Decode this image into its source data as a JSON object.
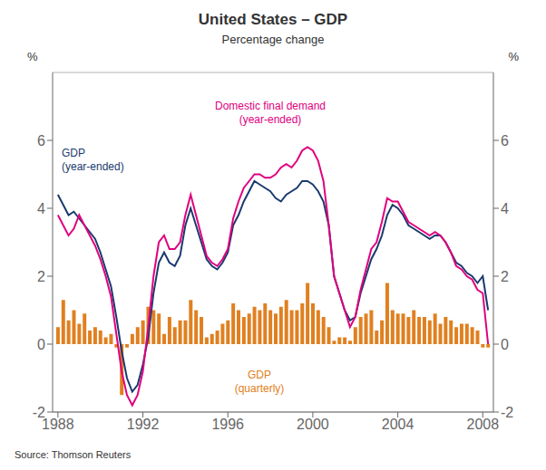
{
  "chart_data": {
    "type": "bar",
    "title": "United States – GDP",
    "subtitle": "Percentage change",
    "ylabel": "%",
    "y2label": "%",
    "source": "Source: Thomson Reuters",
    "xlim": [
      1987.75,
      2008.5
    ],
    "xticks": [
      1988,
      1992,
      1996,
      2000,
      2004,
      2008
    ],
    "ylim": [
      -2,
      8
    ],
    "yticks": [
      -2,
      0,
      2,
      4,
      6
    ],
    "y2lim": [
      -2,
      8
    ],
    "y2ticks": [
      -2,
      0,
      2,
      4,
      6
    ],
    "grid": true,
    "x": [
      1988.0,
      1988.25,
      1988.5,
      1988.75,
      1989.0,
      1989.25,
      1989.5,
      1989.75,
      1990.0,
      1990.25,
      1990.5,
      1990.75,
      1991.0,
      1991.25,
      1991.5,
      1991.75,
      1992.0,
      1992.25,
      1992.5,
      1992.75,
      1993.0,
      1993.25,
      1993.5,
      1993.75,
      1994.0,
      1994.25,
      1994.5,
      1994.75,
      1995.0,
      1995.25,
      1995.5,
      1995.75,
      1996.0,
      1996.25,
      1996.5,
      1996.75,
      1997.0,
      1997.25,
      1997.5,
      1997.75,
      1998.0,
      1998.25,
      1998.5,
      1998.75,
      1999.0,
      1999.25,
      1999.5,
      1999.75,
      2000.0,
      2000.25,
      2000.5,
      2000.75,
      2001.0,
      2001.25,
      2001.5,
      2001.75,
      2002.0,
      2002.25,
      2002.5,
      2002.75,
      2003.0,
      2003.25,
      2003.5,
      2003.75,
      2004.0,
      2004.25,
      2004.5,
      2004.75,
      2005.0,
      2005.25,
      2005.5,
      2005.75,
      2006.0,
      2006.25,
      2006.5,
      2006.75,
      2007.0,
      2007.25,
      2007.5,
      2007.75,
      2008.0,
      2008.25
    ],
    "series": [
      {
        "name": "GDP\n(quarterly)",
        "type": "bar",
        "color": "#e08020",
        "values": [
          0.5,
          1.3,
          0.7,
          1.0,
          0.6,
          0.9,
          0.4,
          0.5,
          0.4,
          0.2,
          0.3,
          -0.1,
          -1.5,
          -0.1,
          0.3,
          0.5,
          0.7,
          1.1,
          1.0,
          0.9,
          0.3,
          0.8,
          0.5,
          0.7,
          0.7,
          1.3,
          1.0,
          0.8,
          0.2,
          0.3,
          0.4,
          0.6,
          0.7,
          1.2,
          1.0,
          0.8,
          0.9,
          1.1,
          1.0,
          1.2,
          1.0,
          0.9,
          1.1,
          1.3,
          1.0,
          1.0,
          1.2,
          1.8,
          1.2,
          1.0,
          0.8,
          0.5,
          0.1,
          0.2,
          0.2,
          0.1,
          0.5,
          0.8,
          0.9,
          1.0,
          0.4,
          0.7,
          1.8,
          1.0,
          0.9,
          0.9,
          0.8,
          1.0,
          0.8,
          0.8,
          0.7,
          0.9,
          0.6,
          0.8,
          0.7,
          0.5,
          0.6,
          0.6,
          0.5,
          0.4,
          -0.1,
          -0.1
        ]
      },
      {
        "name": "GDP\n(year-ended)",
        "type": "line",
        "color": "#1a3a6e",
        "values": [
          4.4,
          4.1,
          3.8,
          3.9,
          3.7,
          3.5,
          3.3,
          3.1,
          2.7,
          2.2,
          1.7,
          0.8,
          -0.2,
          -1.0,
          -1.4,
          -1.2,
          -0.6,
          0.2,
          1.5,
          2.4,
          2.7,
          2.4,
          2.3,
          2.6,
          3.5,
          4.0,
          3.5,
          3.0,
          2.5,
          2.3,
          2.2,
          2.4,
          2.7,
          3.5,
          3.8,
          4.2,
          4.5,
          4.8,
          4.7,
          4.6,
          4.5,
          4.3,
          4.2,
          4.4,
          4.5,
          4.6,
          4.8,
          4.8,
          4.7,
          4.5,
          4.2,
          3.5,
          2.0,
          1.5,
          1.0,
          0.7,
          0.8,
          1.5,
          2.0,
          2.5,
          2.8,
          3.2,
          3.8,
          4.1,
          4.0,
          3.8,
          3.5,
          3.4,
          3.3,
          3.2,
          3.1,
          3.2,
          3.2,
          3.0,
          2.7,
          2.4,
          2.3,
          2.1,
          2.0,
          1.8,
          2.0,
          1.0
        ]
      },
      {
        "name": "Domestic final demand\n(year-ended)",
        "type": "line",
        "color": "#e0007f",
        "values": [
          3.8,
          3.5,
          3.2,
          3.4,
          3.8,
          3.5,
          3.2,
          2.9,
          2.5,
          2.0,
          1.4,
          0.3,
          -0.8,
          -1.5,
          -1.8,
          -1.5,
          -0.8,
          0.5,
          2.0,
          3.0,
          3.2,
          2.8,
          2.8,
          3.0,
          3.8,
          4.4,
          3.8,
          3.2,
          2.6,
          2.4,
          2.3,
          2.5,
          2.8,
          3.7,
          4.2,
          4.6,
          4.8,
          5.0,
          5.0,
          4.9,
          4.9,
          5.0,
          5.2,
          5.3,
          5.2,
          5.4,
          5.7,
          5.8,
          5.7,
          5.4,
          4.8,
          3.5,
          2.0,
          1.5,
          1.0,
          0.5,
          0.8,
          1.6,
          2.2,
          2.8,
          3.0,
          3.6,
          4.3,
          4.2,
          4.2,
          3.9,
          3.6,
          3.5,
          3.4,
          3.3,
          3.2,
          3.3,
          3.2,
          3.0,
          2.7,
          2.3,
          2.2,
          2.0,
          1.9,
          1.6,
          1.5,
          0.0
        ]
      }
    ]
  }
}
